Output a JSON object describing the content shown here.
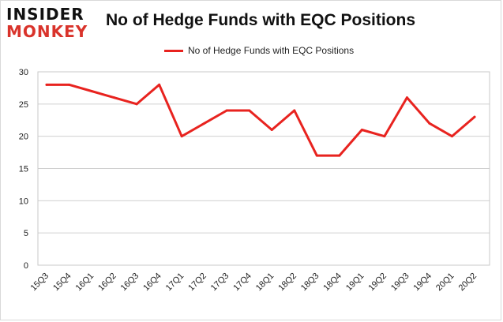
{
  "header": {
    "logo_line1": "INSIDER",
    "logo_line2": "MONKEY",
    "title": "No of Hedge Funds with EQC Positions"
  },
  "legend": {
    "label": "No of Hedge Funds with EQC Positions"
  },
  "colors": {
    "series": "#e8231f",
    "logo_red": "#d9332b",
    "grid": "#d0d0d0"
  },
  "chart_data": {
    "type": "line",
    "title": "No of Hedge Funds with EQC Positions",
    "xlabel": "",
    "ylabel": "",
    "ylim": [
      0,
      30
    ],
    "yticks": [
      0,
      5,
      10,
      15,
      20,
      25,
      30
    ],
    "grid": true,
    "legend_position": "top",
    "categories": [
      "15Q3",
      "15Q4",
      "16Q1",
      "16Q2",
      "16Q3",
      "16Q4",
      "17Q1",
      "17Q2",
      "17Q3",
      "17Q4",
      "18Q1",
      "18Q2",
      "18Q3",
      "18Q4",
      "19Q1",
      "19Q2",
      "19Q3",
      "19Q4",
      "20Q1",
      "20Q2"
    ],
    "series": [
      {
        "name": "No of Hedge Funds with EQC Positions",
        "values": [
          28,
          28,
          27,
          26,
          25,
          28,
          20,
          22,
          24,
          24,
          21,
          24,
          17,
          17,
          21,
          20,
          26,
          22,
          20,
          23
        ]
      }
    ]
  }
}
